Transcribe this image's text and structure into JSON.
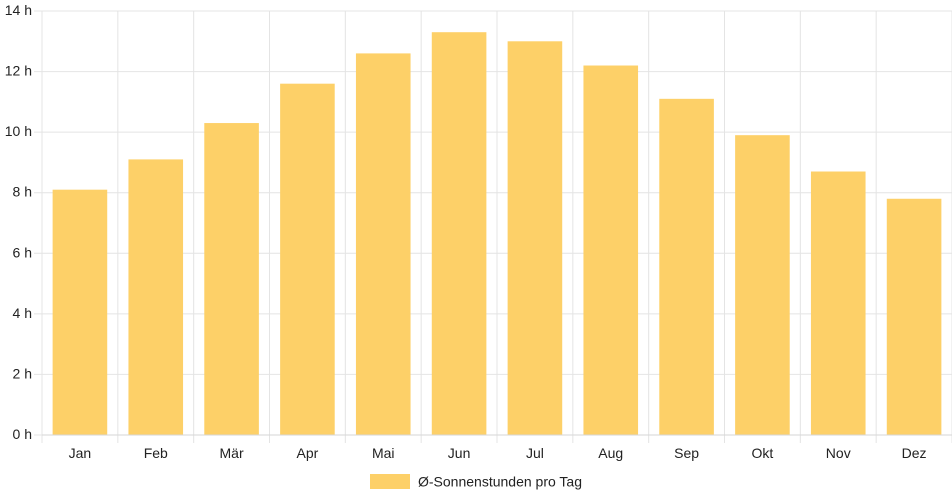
{
  "chart_data": {
    "type": "bar",
    "categories": [
      "Jan",
      "Feb",
      "Mär",
      "Apr",
      "Mai",
      "Jun",
      "Jul",
      "Aug",
      "Sep",
      "Okt",
      "Nov",
      "Dez"
    ],
    "series": [
      {
        "name": "Ø-Sonnenstunden pro Tag",
        "values": [
          8.1,
          9.1,
          10.3,
          11.6,
          12.6,
          13.3,
          13.0,
          12.2,
          11.1,
          9.9,
          8.7,
          7.8
        ]
      }
    ],
    "ylim": [
      0,
      14
    ],
    "y_ticks": [
      0,
      2,
      4,
      6,
      8,
      10,
      12,
      14
    ],
    "y_tick_suffix": " h",
    "grid": true,
    "legend_position": "bottom",
    "bar_color": "#fdd068"
  }
}
